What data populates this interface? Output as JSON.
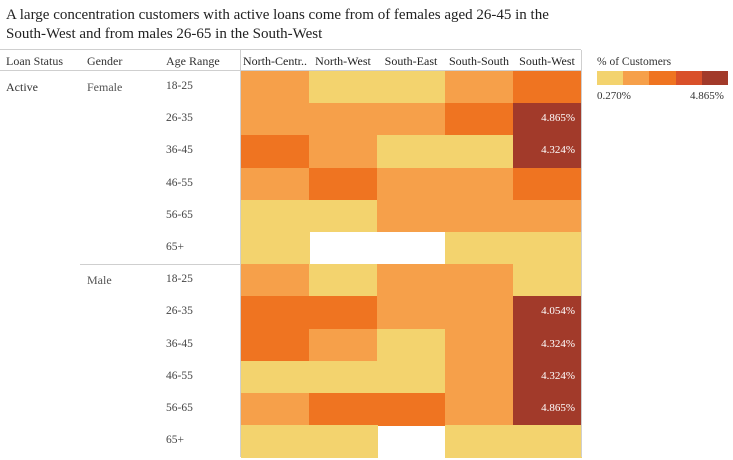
{
  "chart_data": {
    "type": "heatmap",
    "title": "A large concentration customers with active loans come from of females aged 26-45 in the South-West and from males 26-65 in the South-West",
    "headers": {
      "loan_status": "Loan Status",
      "gender": "Gender",
      "age_range": "Age Range"
    },
    "columns": [
      "North-Centr..",
      "North-West",
      "South-East",
      "South-South",
      "South-West"
    ],
    "loan_status": "Active",
    "groups": [
      {
        "gender": "Female",
        "rows": [
          {
            "age": "18-25",
            "levels": [
              1,
              0,
              0,
              1,
              2
            ],
            "labels": [
              "",
              "",
              "",
              "",
              ""
            ]
          },
          {
            "age": "26-35",
            "levels": [
              1,
              1,
              1,
              2,
              4
            ],
            "labels": [
              "",
              "",
              "",
              "",
              "4.865%"
            ]
          },
          {
            "age": "36-45",
            "levels": [
              2,
              1,
              0,
              0,
              4
            ],
            "labels": [
              "",
              "",
              "",
              "",
              "4.324%"
            ]
          },
          {
            "age": "46-55",
            "levels": [
              1,
              2,
              1,
              1,
              2
            ],
            "labels": [
              "",
              "",
              "",
              "",
              ""
            ]
          },
          {
            "age": "56-65",
            "levels": [
              0,
              0,
              1,
              1,
              1
            ],
            "labels": [
              "",
              "",
              "",
              "",
              ""
            ]
          },
          {
            "age": "65+",
            "levels": [
              0,
              null,
              null,
              0,
              0
            ],
            "labels": [
              "",
              "",
              "",
              "",
              ""
            ]
          }
        ]
      },
      {
        "gender": "Male",
        "rows": [
          {
            "age": "18-25",
            "levels": [
              1,
              0,
              1,
              1,
              0
            ],
            "labels": [
              "",
              "",
              "",
              "",
              ""
            ]
          },
          {
            "age": "26-35",
            "levels": [
              2,
              2,
              1,
              1,
              4
            ],
            "labels": [
              "",
              "",
              "",
              "",
              "4.054%"
            ]
          },
          {
            "age": "36-45",
            "levels": [
              2,
              1,
              0,
              1,
              4
            ],
            "labels": [
              "",
              "",
              "",
              "",
              "4.324%"
            ]
          },
          {
            "age": "46-55",
            "levels": [
              0,
              0,
              0,
              1,
              4
            ],
            "labels": [
              "",
              "",
              "",
              "",
              "4.324%"
            ]
          },
          {
            "age": "56-65",
            "levels": [
              1,
              2,
              2,
              1,
              4
            ],
            "labels": [
              "",
              "",
              "",
              "",
              "4.865%"
            ]
          },
          {
            "age": "65+",
            "levels": [
              0,
              0,
              null,
              0,
              0
            ],
            "labels": [
              "",
              "",
              "",
              "",
              ""
            ]
          }
        ]
      }
    ],
    "legend": {
      "title": "% of Customers",
      "min": "0.270%",
      "max": "4.865%",
      "colors": [
        "#f3d36e",
        "#f6a04a",
        "#ef7421",
        "#d9502a",
        "#a23a2a"
      ]
    }
  }
}
